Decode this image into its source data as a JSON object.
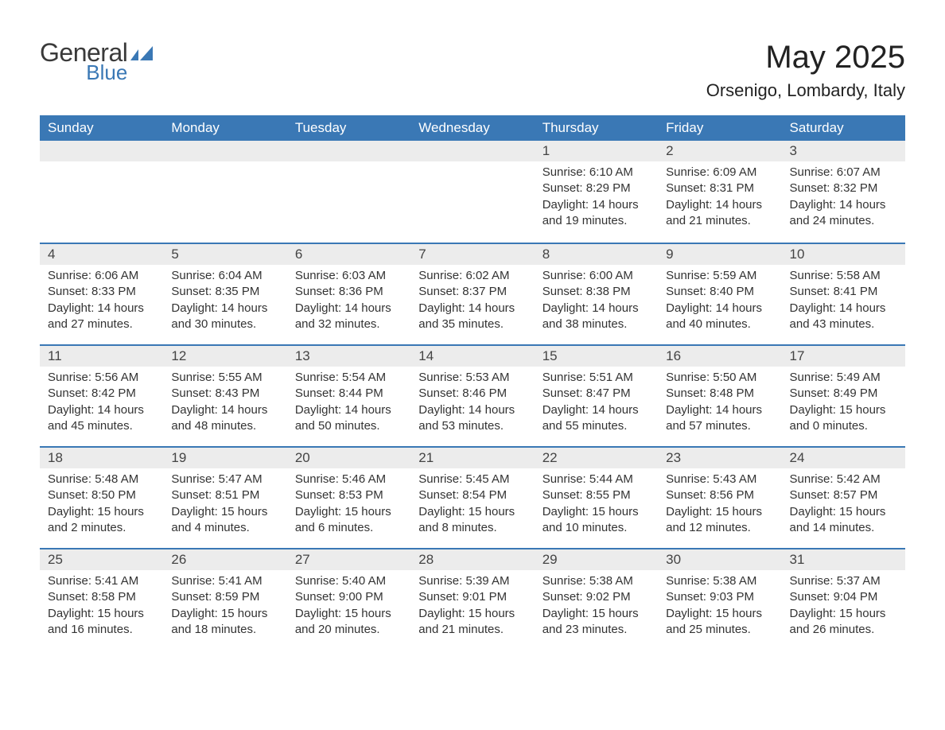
{
  "logo": {
    "word1": "General",
    "word2": "Blue",
    "accent_color": "#3a78b5"
  },
  "title": "May 2025",
  "location": "Orsenigo, Lombardy, Italy",
  "colors": {
    "header_bg": "#3a78b5",
    "header_text": "#ffffff",
    "daynum_bg": "#ececec",
    "row_border": "#3a78b5",
    "body_text": "#333333"
  },
  "weekdays": [
    "Sunday",
    "Monday",
    "Tuesday",
    "Wednesday",
    "Thursday",
    "Friday",
    "Saturday"
  ],
  "weeks": [
    [
      null,
      null,
      null,
      null,
      {
        "n": "1",
        "sunrise": "6:10 AM",
        "sunset": "8:29 PM",
        "daylight": "14 hours and 19 minutes."
      },
      {
        "n": "2",
        "sunrise": "6:09 AM",
        "sunset": "8:31 PM",
        "daylight": "14 hours and 21 minutes."
      },
      {
        "n": "3",
        "sunrise": "6:07 AM",
        "sunset": "8:32 PM",
        "daylight": "14 hours and 24 minutes."
      }
    ],
    [
      {
        "n": "4",
        "sunrise": "6:06 AM",
        "sunset": "8:33 PM",
        "daylight": "14 hours and 27 minutes."
      },
      {
        "n": "5",
        "sunrise": "6:04 AM",
        "sunset": "8:35 PM",
        "daylight": "14 hours and 30 minutes."
      },
      {
        "n": "6",
        "sunrise": "6:03 AM",
        "sunset": "8:36 PM",
        "daylight": "14 hours and 32 minutes."
      },
      {
        "n": "7",
        "sunrise": "6:02 AM",
        "sunset": "8:37 PM",
        "daylight": "14 hours and 35 minutes."
      },
      {
        "n": "8",
        "sunrise": "6:00 AM",
        "sunset": "8:38 PM",
        "daylight": "14 hours and 38 minutes."
      },
      {
        "n": "9",
        "sunrise": "5:59 AM",
        "sunset": "8:40 PM",
        "daylight": "14 hours and 40 minutes."
      },
      {
        "n": "10",
        "sunrise": "5:58 AM",
        "sunset": "8:41 PM",
        "daylight": "14 hours and 43 minutes."
      }
    ],
    [
      {
        "n": "11",
        "sunrise": "5:56 AM",
        "sunset": "8:42 PM",
        "daylight": "14 hours and 45 minutes."
      },
      {
        "n": "12",
        "sunrise": "5:55 AM",
        "sunset": "8:43 PM",
        "daylight": "14 hours and 48 minutes."
      },
      {
        "n": "13",
        "sunrise": "5:54 AM",
        "sunset": "8:44 PM",
        "daylight": "14 hours and 50 minutes."
      },
      {
        "n": "14",
        "sunrise": "5:53 AM",
        "sunset": "8:46 PM",
        "daylight": "14 hours and 53 minutes."
      },
      {
        "n": "15",
        "sunrise": "5:51 AM",
        "sunset": "8:47 PM",
        "daylight": "14 hours and 55 minutes."
      },
      {
        "n": "16",
        "sunrise": "5:50 AM",
        "sunset": "8:48 PM",
        "daylight": "14 hours and 57 minutes."
      },
      {
        "n": "17",
        "sunrise": "5:49 AM",
        "sunset": "8:49 PM",
        "daylight": "15 hours and 0 minutes."
      }
    ],
    [
      {
        "n": "18",
        "sunrise": "5:48 AM",
        "sunset": "8:50 PM",
        "daylight": "15 hours and 2 minutes."
      },
      {
        "n": "19",
        "sunrise": "5:47 AM",
        "sunset": "8:51 PM",
        "daylight": "15 hours and 4 minutes."
      },
      {
        "n": "20",
        "sunrise": "5:46 AM",
        "sunset": "8:53 PM",
        "daylight": "15 hours and 6 minutes."
      },
      {
        "n": "21",
        "sunrise": "5:45 AM",
        "sunset": "8:54 PM",
        "daylight": "15 hours and 8 minutes."
      },
      {
        "n": "22",
        "sunrise": "5:44 AM",
        "sunset": "8:55 PM",
        "daylight": "15 hours and 10 minutes."
      },
      {
        "n": "23",
        "sunrise": "5:43 AM",
        "sunset": "8:56 PM",
        "daylight": "15 hours and 12 minutes."
      },
      {
        "n": "24",
        "sunrise": "5:42 AM",
        "sunset": "8:57 PM",
        "daylight": "15 hours and 14 minutes."
      }
    ],
    [
      {
        "n": "25",
        "sunrise": "5:41 AM",
        "sunset": "8:58 PM",
        "daylight": "15 hours and 16 minutes."
      },
      {
        "n": "26",
        "sunrise": "5:41 AM",
        "sunset": "8:59 PM",
        "daylight": "15 hours and 18 minutes."
      },
      {
        "n": "27",
        "sunrise": "5:40 AM",
        "sunset": "9:00 PM",
        "daylight": "15 hours and 20 minutes."
      },
      {
        "n": "28",
        "sunrise": "5:39 AM",
        "sunset": "9:01 PM",
        "daylight": "15 hours and 21 minutes."
      },
      {
        "n": "29",
        "sunrise": "5:38 AM",
        "sunset": "9:02 PM",
        "daylight": "15 hours and 23 minutes."
      },
      {
        "n": "30",
        "sunrise": "5:38 AM",
        "sunset": "9:03 PM",
        "daylight": "15 hours and 25 minutes."
      },
      {
        "n": "31",
        "sunrise": "5:37 AM",
        "sunset": "9:04 PM",
        "daylight": "15 hours and 26 minutes."
      }
    ]
  ],
  "labels": {
    "sunrise": "Sunrise: ",
    "sunset": "Sunset: ",
    "daylight": "Daylight: "
  }
}
